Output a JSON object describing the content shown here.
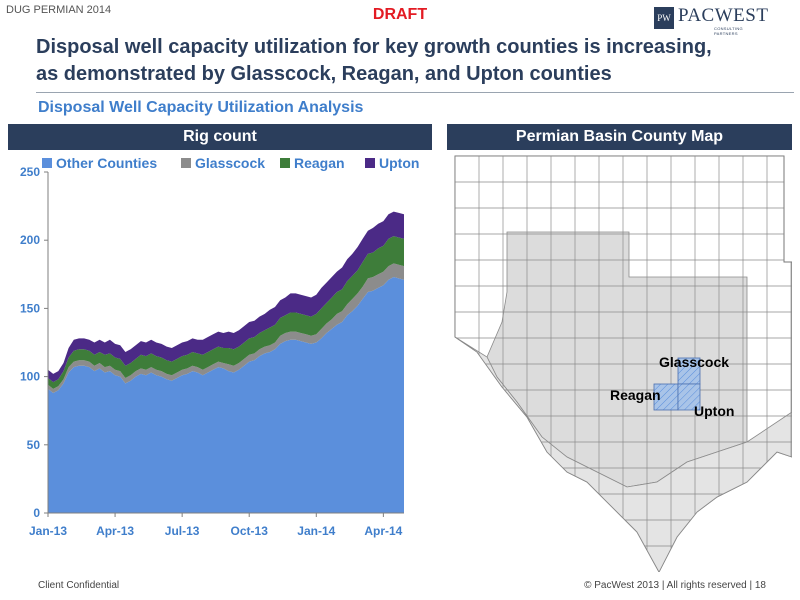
{
  "header": {
    "event": "DUG PERMIAN 2014",
    "draft": "DRAFT",
    "logo_mark": "PW",
    "logo_name": "PACWEST",
    "logo_tagline": "CONSULTING PARTNERS",
    "headline_line1": "Disposal well capacity utilization for key growth counties is increasing,",
    "headline_line2": "as demonstrated by Glasscock, Reagan, and Upton counties",
    "subtitle": "Disposal Well Capacity Utilization Analysis"
  },
  "colors": {
    "navy": "#2b3e5c",
    "accent_blue": "#3f7ecb",
    "draft_red": "#e31b23",
    "other_counties": "#5b8fdc",
    "glasscock": "#8c8c8c",
    "reagan": "#3e7d3a",
    "upton": "#4b2a86",
    "map_fill": "#dcdcdc",
    "map_highlight": "#a9c4e8"
  },
  "chart_data": {
    "type": "area",
    "stacked": true,
    "title": "Rig count",
    "xlabel": "",
    "ylabel": "",
    "ylim": [
      0,
      250
    ],
    "yticks": [
      0,
      50,
      100,
      150,
      200,
      250
    ],
    "x_tick_labels": [
      "Jan-13",
      "Apr-13",
      "Jul-13",
      "Oct-13",
      "Jan-14",
      "Apr-14"
    ],
    "x_tick_weeks": [
      0,
      13,
      26,
      39,
      52,
      65
    ],
    "weeks_total": 69,
    "legend_position": "top",
    "series": [
      {
        "name": "Other Counties",
        "color": "#5b8fdc",
        "values": [
          91,
          88,
          90,
          95,
          103,
          107,
          108,
          108,
          107,
          104,
          106,
          103,
          104,
          101,
          100,
          95,
          97,
          100,
          102,
          101,
          103,
          101,
          100,
          98,
          97,
          99,
          101,
          102,
          104,
          103,
          101,
          103,
          105,
          107,
          106,
          104,
          103,
          105,
          108,
          111,
          112,
          115,
          117,
          118,
          120,
          124,
          126,
          127,
          127,
          126,
          125,
          124,
          125,
          128,
          132,
          135,
          138,
          140,
          145,
          148,
          152,
          157,
          162,
          163,
          165,
          167,
          171,
          173,
          172,
          171
        ]
      },
      {
        "name": "Glasscock",
        "color": "#8c8c8c",
        "values": [
          3,
          3,
          3,
          3,
          4,
          4,
          4,
          4,
          4,
          4,
          4,
          4,
          4,
          4,
          4,
          4,
          4,
          4,
          4,
          4,
          4,
          4,
          4,
          4,
          4,
          4,
          4,
          4,
          4,
          4,
          4,
          4,
          4,
          4,
          4,
          5,
          5,
          5,
          5,
          5,
          5,
          5,
          5,
          5,
          5,
          6,
          6,
          6,
          6,
          6,
          6,
          6,
          6,
          7,
          7,
          7,
          8,
          8,
          8,
          9,
          9,
          9,
          10,
          10,
          10,
          10,
          10,
          10,
          10,
          10
        ]
      },
      {
        "name": "Reagan",
        "color": "#3e7d3a",
        "values": [
          5,
          5,
          5,
          6,
          7,
          8,
          8,
          8,
          8,
          8,
          8,
          9,
          9,
          9,
          9,
          9,
          9,
          9,
          10,
          10,
          10,
          10,
          10,
          10,
          10,
          10,
          10,
          10,
          10,
          10,
          11,
          11,
          11,
          11,
          11,
          12,
          12,
          12,
          12,
          12,
          12,
          12,
          12,
          13,
          13,
          13,
          13,
          14,
          14,
          14,
          14,
          14,
          15,
          15,
          15,
          16,
          16,
          16,
          17,
          17,
          17,
          18,
          18,
          18,
          19,
          19,
          20,
          20,
          20,
          20
        ]
      },
      {
        "name": "Upton",
        "color": "#4b2a86",
        "values": [
          6,
          6,
          6,
          6,
          7,
          8,
          8,
          8,
          8,
          9,
          9,
          9,
          10,
          10,
          10,
          10,
          10,
          10,
          10,
          10,
          10,
          10,
          10,
          10,
          10,
          10,
          10,
          10,
          10,
          10,
          11,
          11,
          11,
          11,
          11,
          12,
          12,
          12,
          12,
          12,
          12,
          12,
          12,
          13,
          13,
          13,
          13,
          14,
          14,
          14,
          14,
          14,
          14,
          15,
          15,
          15,
          15,
          16,
          16,
          16,
          17,
          17,
          17,
          18,
          18,
          18,
          18,
          18,
          18,
          18
        ]
      }
    ]
  },
  "map": {
    "title": "Permian Basin County Map",
    "labels": {
      "glasscock": "Glasscock",
      "reagan": "Reagan",
      "upton": "Upton"
    }
  },
  "footer": {
    "left": "Client Confidential",
    "right": "© PacWest 2013 | All rights reserved | 18"
  }
}
